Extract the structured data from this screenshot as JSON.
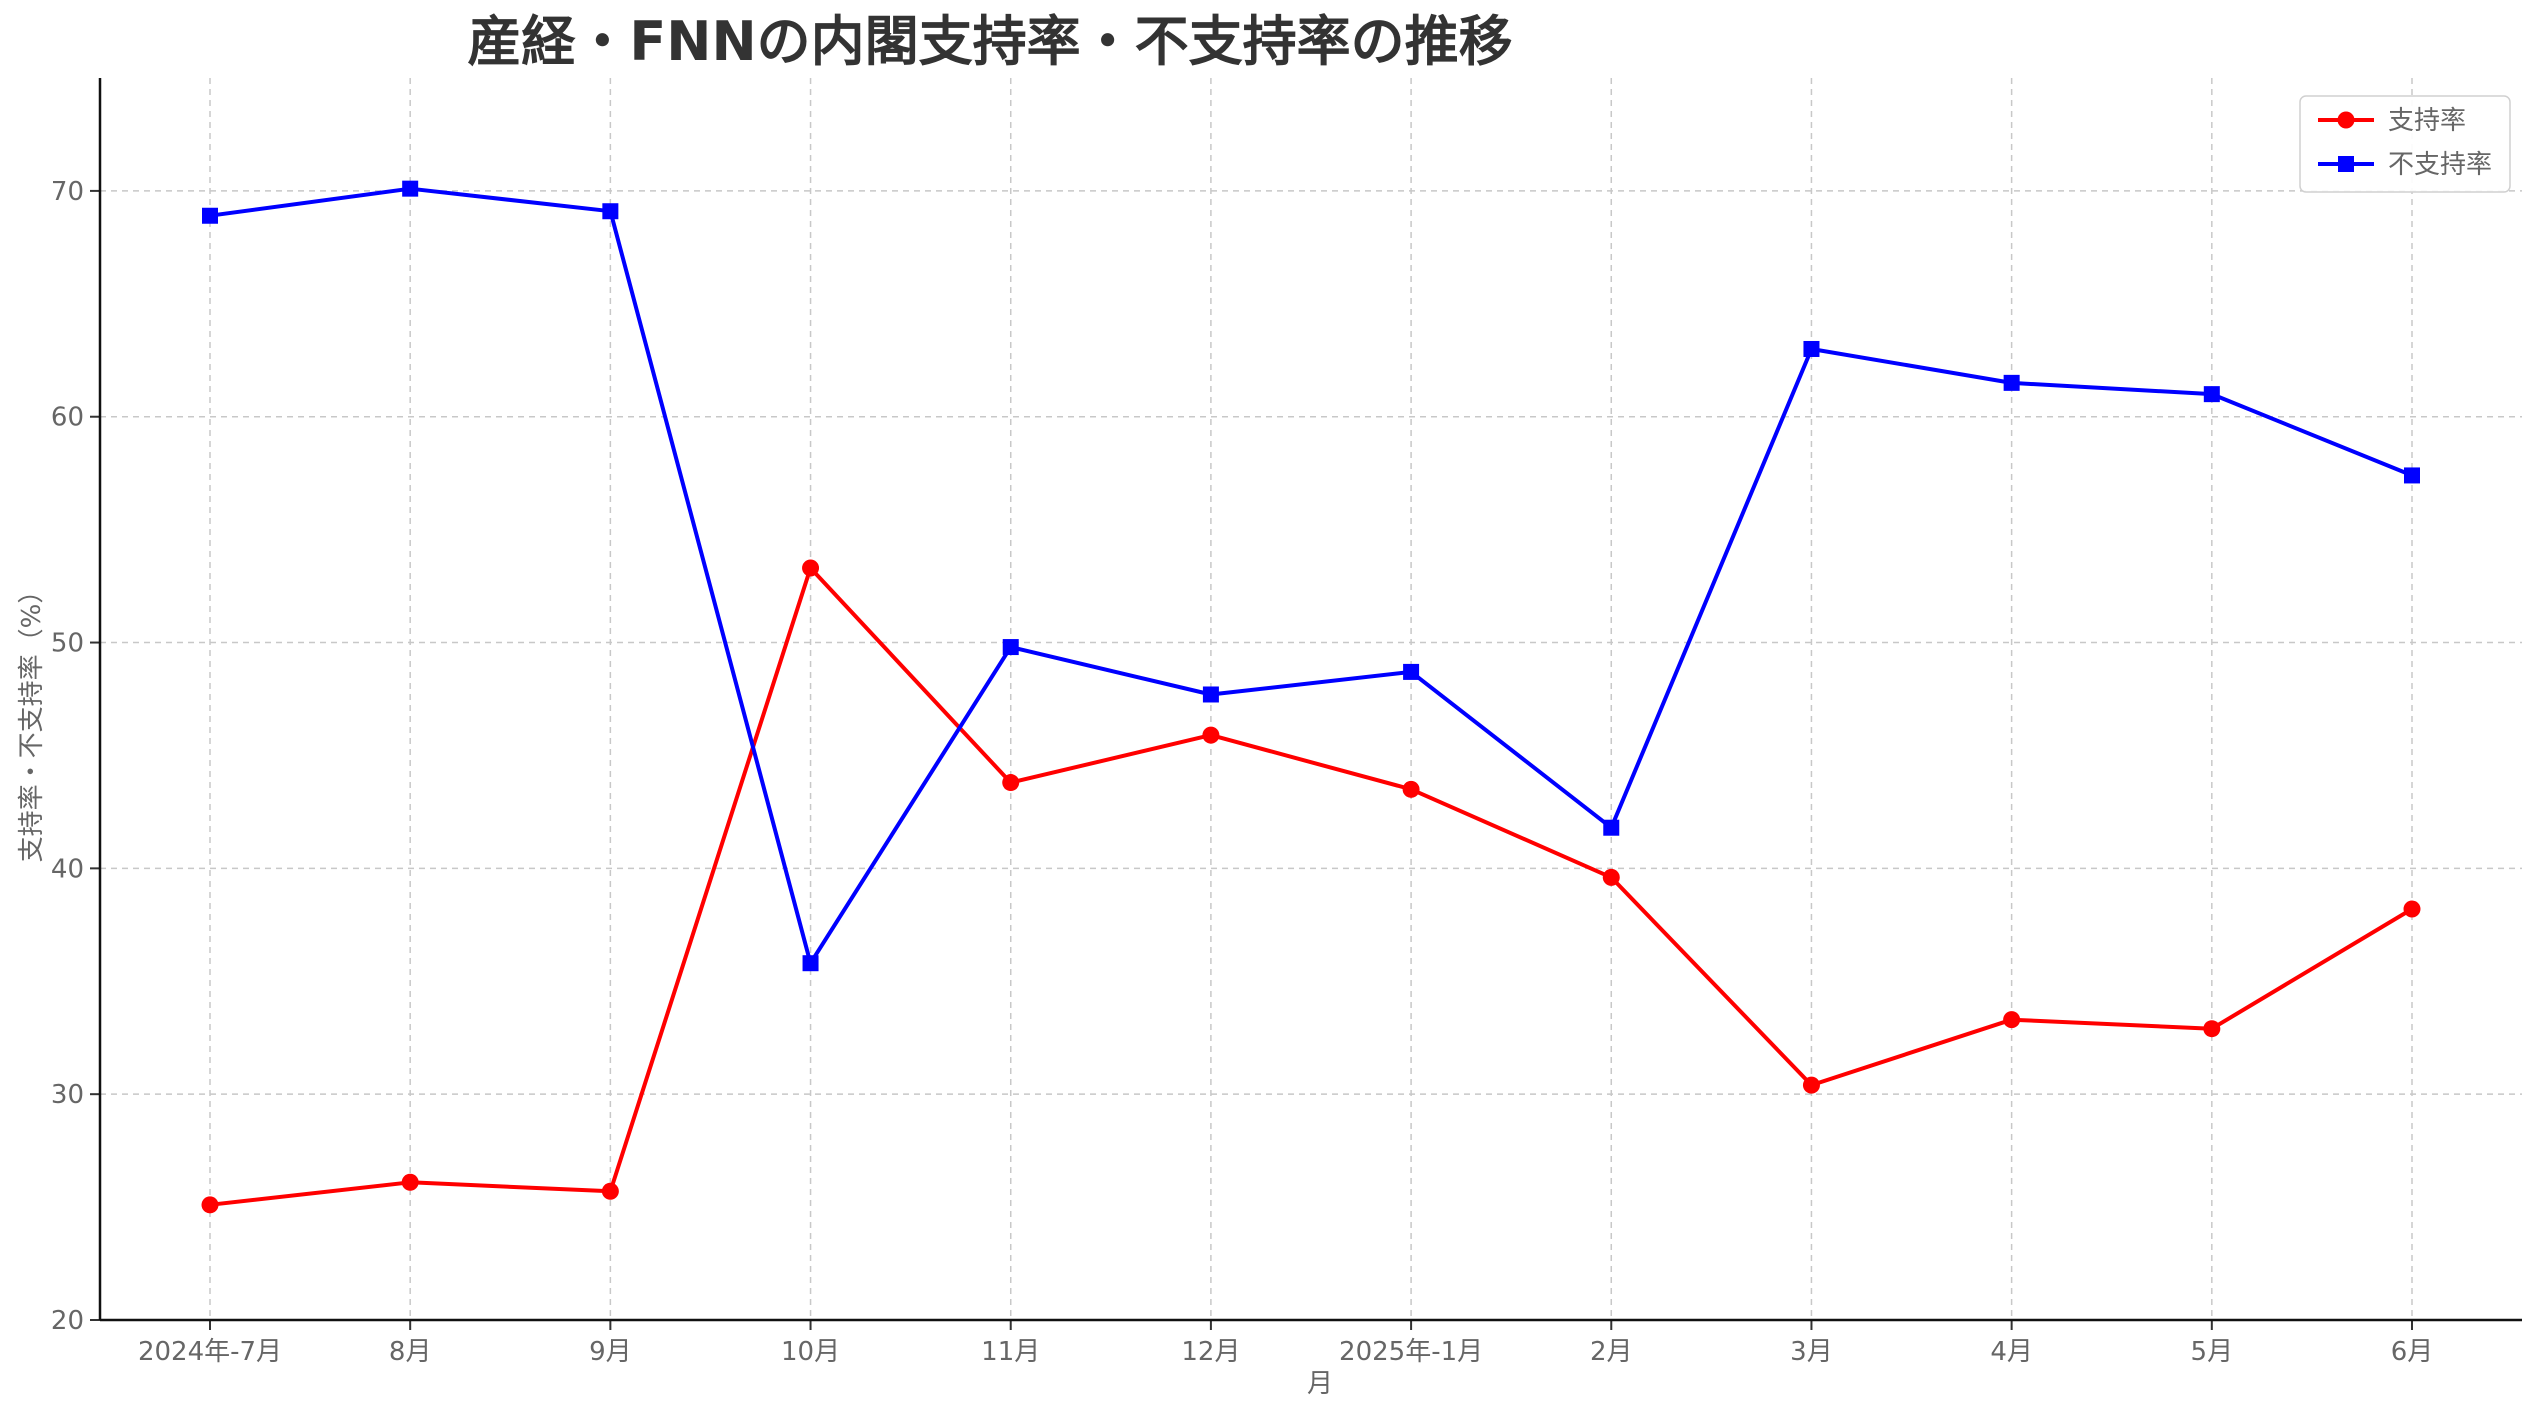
{
  "chart_data": {
    "type": "line",
    "title": "産経・FNNの内閣支持率・不支持率の推移",
    "xlabel": "月",
    "ylabel": "支持率・不支持率（%）",
    "categories": [
      "2024年-7月",
      "8月",
      "9月",
      "10月",
      "11月",
      "12月",
      "2025年-1月",
      "2月",
      "3月",
      "4月",
      "5月",
      "6月"
    ],
    "ylim": [
      20,
      75
    ],
    "yticks": [
      20,
      30,
      40,
      50,
      60,
      70
    ],
    "grid": true,
    "legend_position": "top-right",
    "series": [
      {
        "name": "支持率",
        "color": "#ff0000",
        "marker": "circle",
        "values": [
          25.1,
          26.1,
          25.7,
          53.3,
          43.8,
          45.9,
          43.5,
          39.6,
          30.4,
          33.3,
          32.9,
          38.2
        ]
      },
      {
        "name": "不支持率",
        "color": "#0000ff",
        "marker": "square",
        "values": [
          68.9,
          70.1,
          69.1,
          35.8,
          49.8,
          47.7,
          48.7,
          41.8,
          63.0,
          61.5,
          61.0,
          57.4
        ]
      }
    ]
  }
}
